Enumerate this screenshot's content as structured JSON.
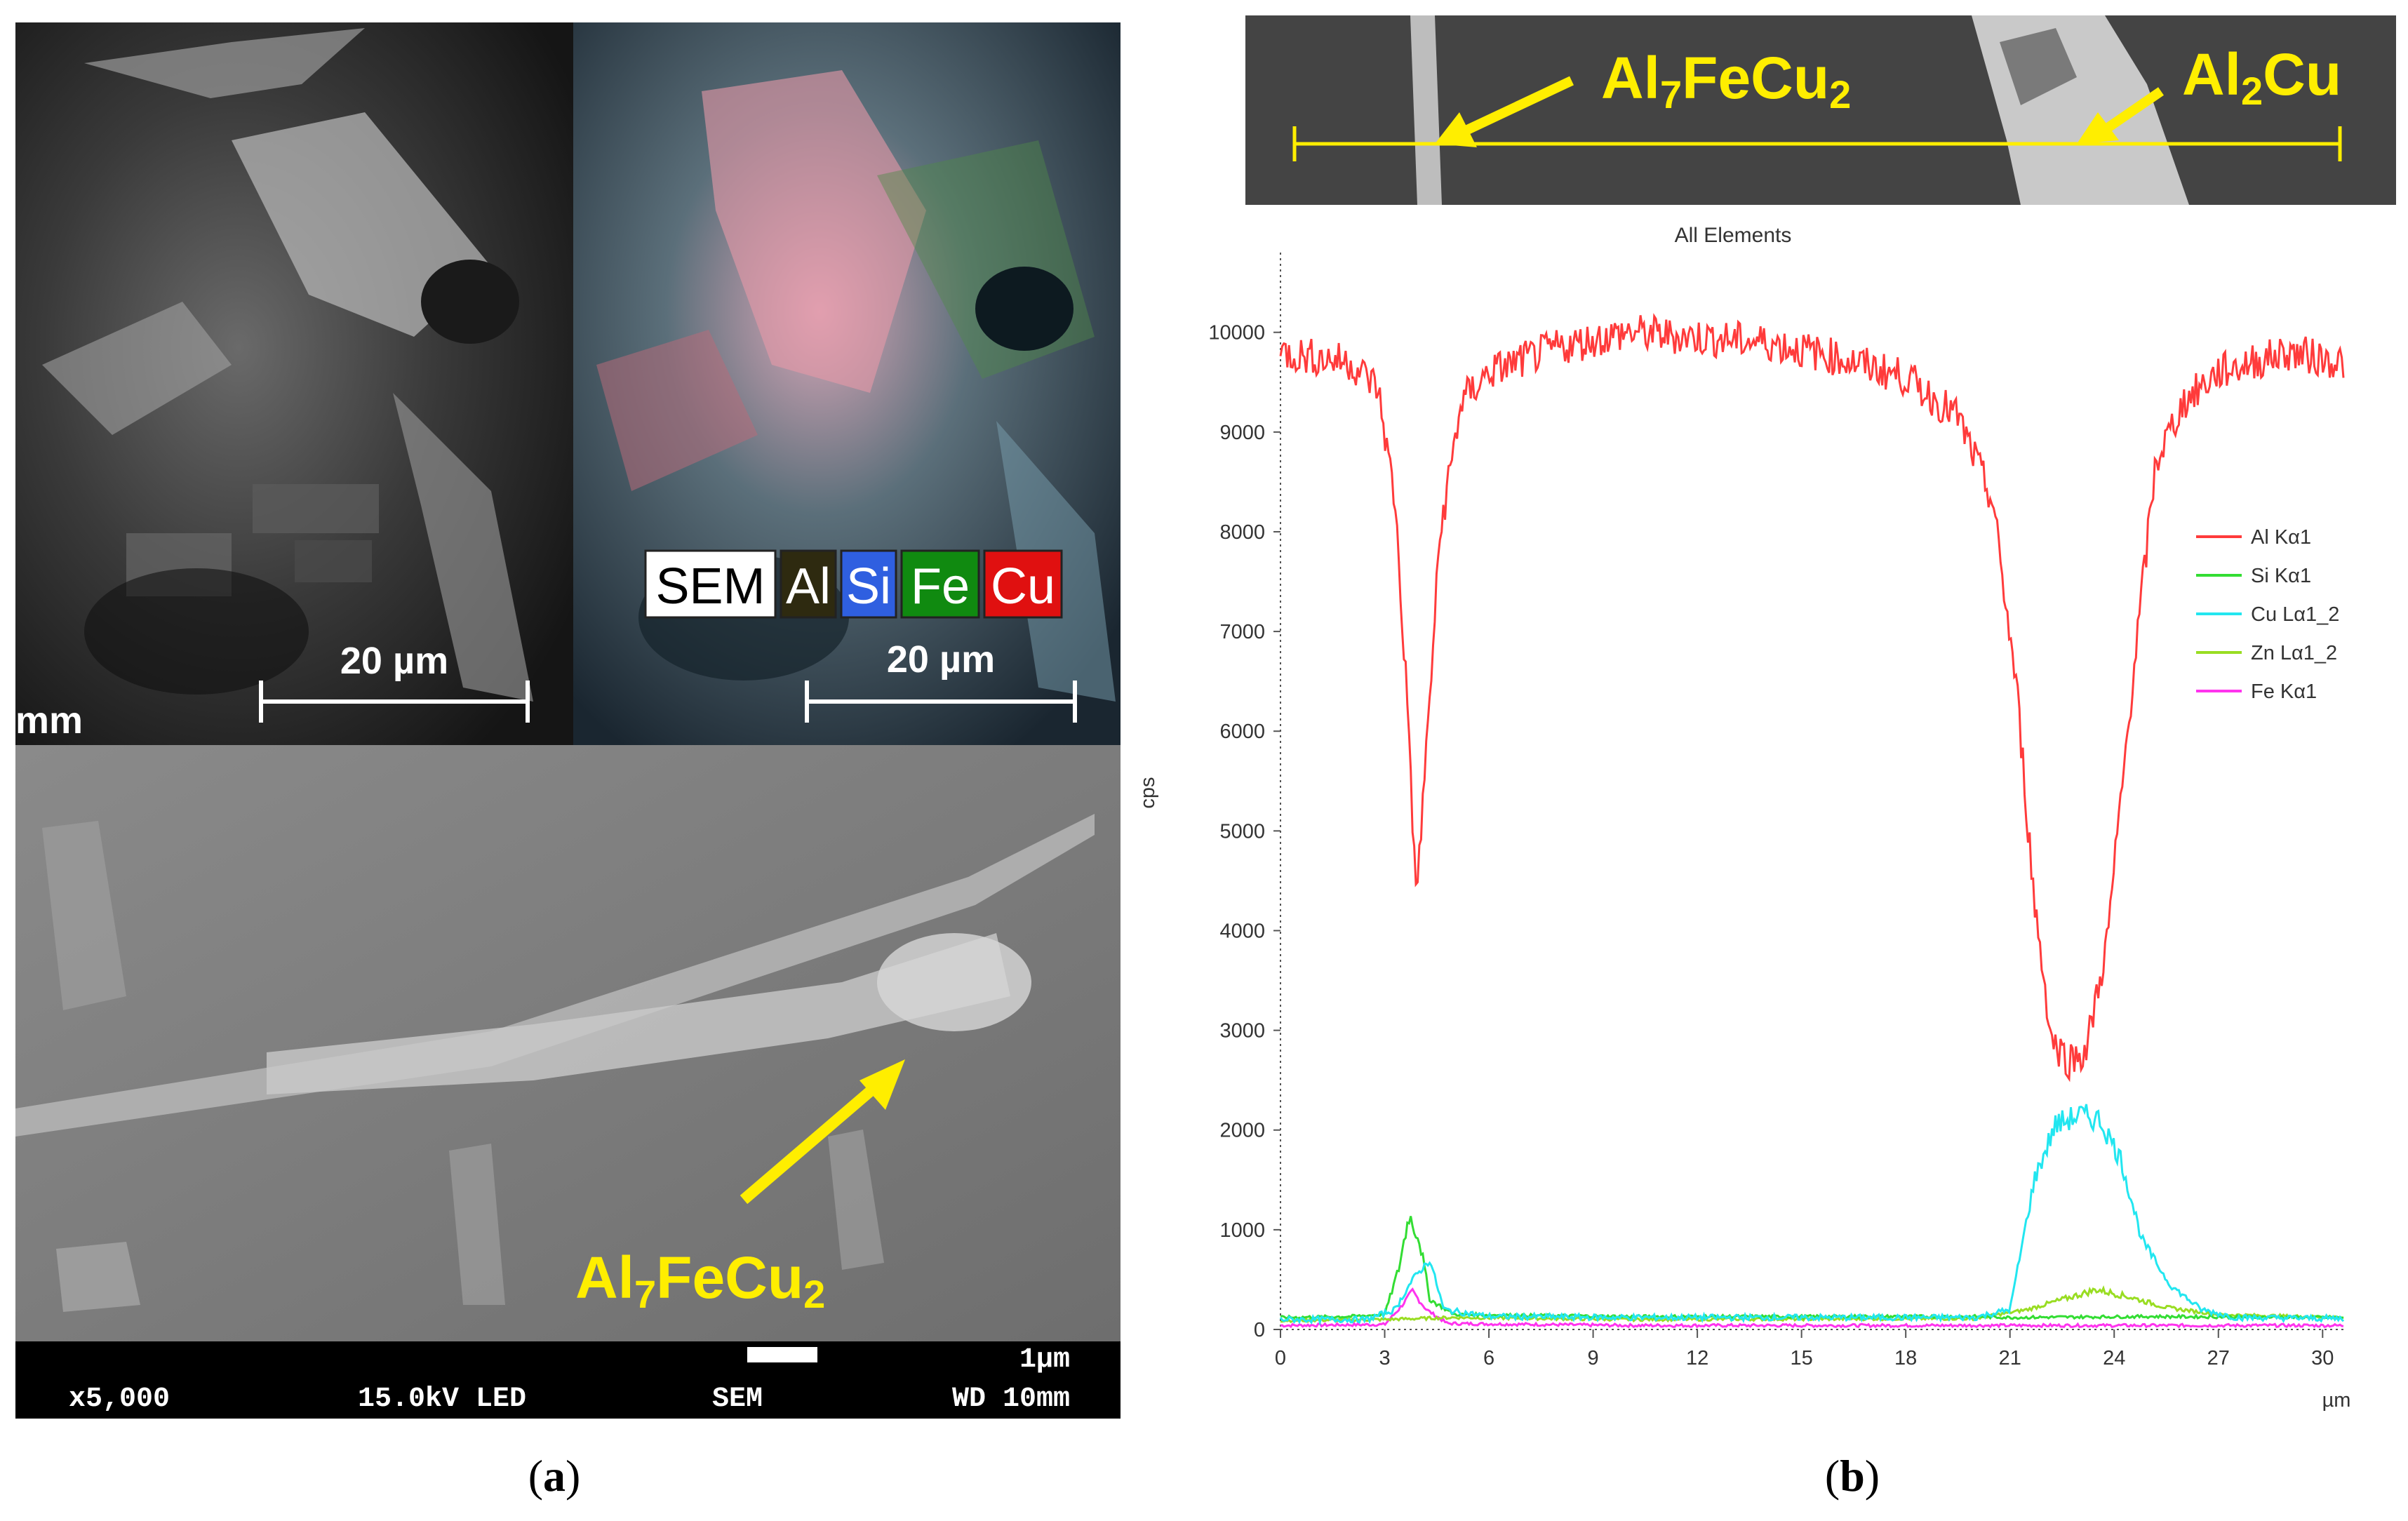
{
  "panel_a": {
    "caption": "a",
    "scale_left": "20 µm",
    "scale_right": "20 µm",
    "partial_label": "mm",
    "map_legend": [
      {
        "label": "SEM",
        "bg": "#ffffff",
        "fg": "#000000"
      },
      {
        "label": "Al",
        "bg": "#2e2a10",
        "fg": "#ffffff"
      },
      {
        "label": "Si",
        "bg": "#2f5fe0",
        "fg": "#ffffff"
      },
      {
        "label": "Fe",
        "bg": "#108a10",
        "fg": "#ffffff"
      },
      {
        "label": "Cu",
        "bg": "#e01010",
        "fg": "#ffffff"
      }
    ],
    "phase_label": {
      "main": "Al",
      "sub1": "7",
      "mid": "FeCu",
      "sub2": "2"
    },
    "data_bar": {
      "magnification": "x5,000",
      "voltage": "15.0kV LED",
      "mode": "SEM",
      "wd": "WD 10mm",
      "scale": "1µm"
    }
  },
  "panel_b": {
    "caption": "b",
    "line_scan_labels": [
      {
        "main": "Al",
        "sub1": "7",
        "mid": "FeCu",
        "sub2": "2"
      },
      {
        "main": "Al",
        "sub1": "2",
        "mid": "Cu",
        "sub2": ""
      }
    ]
  },
  "colors": {
    "Al": "#ff3b3b",
    "Si": "#33dd33",
    "Cu": "#22e6f0",
    "Zn": "#99dd22",
    "Fe": "#ff33ee",
    "annotation": "#ffee00"
  },
  "chart_data": {
    "type": "line",
    "title": "All Elements",
    "xlabel": "µm",
    "ylabel": "cps",
    "xlim": [
      0,
      30.6
    ],
    "ylim": [
      0,
      10800
    ],
    "xticks": [
      0,
      3,
      6,
      9,
      12,
      15,
      18,
      21,
      24,
      27,
      30
    ],
    "yticks": [
      0,
      1000,
      2000,
      3000,
      4000,
      5000,
      6000,
      7000,
      8000,
      9000,
      10000
    ],
    "legend_position": "right",
    "series": [
      {
        "name": "Al Kα1",
        "color": "#ff3b3b",
        "points": [
          [
            0,
            9800
          ],
          [
            1,
            9750
          ],
          [
            2,
            9700
          ],
          [
            2.8,
            9450
          ],
          [
            3.3,
            8300
          ],
          [
            3.7,
            6000
          ],
          [
            3.9,
            4300
          ],
          [
            4.2,
            5800
          ],
          [
            4.6,
            8000
          ],
          [
            5.2,
            9300
          ],
          [
            6,
            9600
          ],
          [
            8,
            9850
          ],
          [
            10,
            10000
          ],
          [
            12,
            9950
          ],
          [
            14,
            9900
          ],
          [
            16,
            9750
          ],
          [
            18,
            9550
          ],
          [
            19.5,
            9150
          ],
          [
            20.5,
            8300
          ],
          [
            21.2,
            6400
          ],
          [
            21.7,
            4300
          ],
          [
            22.2,
            2900
          ],
          [
            22.7,
            2700
          ],
          [
            23.2,
            2800
          ],
          [
            23.8,
            3900
          ],
          [
            24.5,
            6400
          ],
          [
            25.2,
            8700
          ],
          [
            26,
            9300
          ],
          [
            27,
            9600
          ],
          [
            28,
            9700
          ],
          [
            29,
            9800
          ],
          [
            30.6,
            9700
          ]
        ]
      },
      {
        "name": "Si Kα1",
        "color": "#33dd33",
        "points": [
          [
            0,
            120
          ],
          [
            2,
            130
          ],
          [
            3,
            150
          ],
          [
            3.4,
            600
          ],
          [
            3.7,
            1150
          ],
          [
            4,
            900
          ],
          [
            4.3,
            300
          ],
          [
            5,
            150
          ],
          [
            10,
            130
          ],
          [
            20,
            130
          ],
          [
            21,
            120
          ],
          [
            25,
            130
          ],
          [
            30.6,
            120
          ]
        ]
      },
      {
        "name": "Cu Lα1_2",
        "color": "#22e6f0",
        "points": [
          [
            0,
            100
          ],
          [
            2.5,
            100
          ],
          [
            3.3,
            200
          ],
          [
            3.8,
            500
          ],
          [
            4.3,
            700
          ],
          [
            4.7,
            200
          ],
          [
            6,
            130
          ],
          [
            10,
            120
          ],
          [
            20,
            120
          ],
          [
            21,
            200
          ],
          [
            21.7,
            1500
          ],
          [
            22.3,
            2050
          ],
          [
            23,
            2150
          ],
          [
            23.6,
            2100
          ],
          [
            24.2,
            1700
          ],
          [
            24.8,
            900
          ],
          [
            25.6,
            450
          ],
          [
            26.5,
            200
          ],
          [
            27.5,
            120
          ],
          [
            30.6,
            110
          ]
        ]
      },
      {
        "name": "Zn Lα1_2",
        "color": "#99dd22",
        "points": [
          [
            0,
            90
          ],
          [
            3,
            100
          ],
          [
            5,
            120
          ],
          [
            10,
            100
          ],
          [
            20,
            110
          ],
          [
            21.5,
            200
          ],
          [
            22.5,
            300
          ],
          [
            23.5,
            400
          ],
          [
            24.5,
            320
          ],
          [
            25.5,
            220
          ],
          [
            27,
            150
          ],
          [
            30.6,
            120
          ]
        ]
      },
      {
        "name": "Fe Kα1",
        "color": "#ff33ee",
        "points": [
          [
            0,
            40
          ],
          [
            3,
            50
          ],
          [
            3.4,
            200
          ],
          [
            3.8,
            380
          ],
          [
            4.2,
            200
          ],
          [
            4.8,
            60
          ],
          [
            10,
            40
          ],
          [
            20,
            40
          ],
          [
            30.6,
            40
          ]
        ]
      }
    ]
  }
}
